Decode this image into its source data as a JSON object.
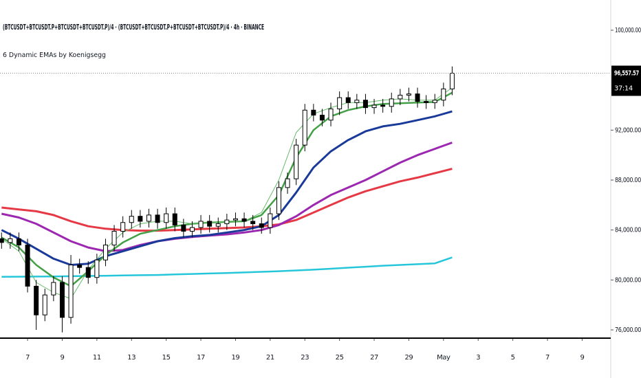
{
  "chart_data": {
    "type": "candlestick",
    "title": "(BTCUSDT+BTCUSDT.P+BTCUSDT+BTCUSDT.P)/4 · (BTCUSDT+BTCUSDT.P+BTCUSDT+BTCUSDT.P)/4 · 4h · BINANCE",
    "subtitle": "6 Dynamic EMAs by Koenigsegg",
    "xlim": [
      5.41,
      40.65
    ],
    "xticks": [
      7,
      9,
      11,
      13,
      15,
      17,
      19,
      21,
      23,
      25,
      27,
      29,
      {
        "value": 31,
        "label": "May"
      },
      {
        "value": 33,
        "label": "3"
      },
      {
        "value": 35,
        "label": "5"
      },
      {
        "value": 37,
        "label": "7"
      },
      {
        "value": 39,
        "label": "9"
      }
    ],
    "ylim": [
      75340,
      102420
    ],
    "yticks": [
      {
        "value": 100000,
        "label": "100,000.00"
      },
      {
        "value": 92000,
        "label": "92,000.00"
      },
      {
        "value": 88000,
        "label": "88,000.00"
      },
      {
        "value": 84000,
        "label": "84,000.00"
      },
      {
        "value": 80000,
        "label": "80,000.00"
      },
      {
        "value": 76000,
        "label": "76,000.00"
      }
    ],
    "up_color": "#ffffff",
    "down_color": "#000000",
    "x": [
      5.5,
      6,
      6.5,
      7,
      7.5,
      8,
      8.5,
      9,
      9.5,
      10,
      10.5,
      11,
      11.5,
      12,
      12.5,
      13,
      13.5,
      14,
      14.5,
      15,
      15.5,
      16,
      16.5,
      17,
      17.5,
      18,
      18.5,
      19,
      19.5,
      20,
      20.5,
      21,
      21.5,
      22,
      22.5,
      23,
      23.5,
      24,
      24.5,
      25,
      25.5,
      26,
      26.5,
      27,
      27.5,
      28,
      28.5,
      29,
      29.5,
      30,
      30.5,
      31,
      31.5
    ],
    "open": [
      83300,
      83000,
      83300,
      82800,
      79500,
      77200,
      78800,
      79800,
      77000,
      81200,
      81000,
      80200,
      81600,
      82800,
      83900,
      84600,
      85100,
      84700,
      85200,
      84600,
      85300,
      84400,
      83900,
      84200,
      84700,
      84300,
      84500,
      84800,
      84900,
      84700,
      84500,
      84200,
      85300,
      87400,
      88100,
      90800,
      93600,
      93200,
      92800,
      93700,
      94600,
      94200,
      94400,
      93800,
      94000,
      93900,
      94500,
      94800,
      94900,
      94300,
      94200,
      94400,
      95300
    ],
    "high": [
      83800,
      83800,
      83800,
      83300,
      80000,
      79300,
      80300,
      80300,
      82000,
      81700,
      81500,
      82100,
      83300,
      84400,
      85100,
      85600,
      85600,
      85700,
      85700,
      85800,
      85800,
      84900,
      84700,
      85200,
      85200,
      85000,
      85300,
      85400,
      85400,
      85200,
      85000,
      85800,
      87900,
      88600,
      91300,
      94100,
      94100,
      93700,
      94200,
      95100,
      95100,
      94900,
      94900,
      94500,
      94500,
      95000,
      95300,
      95400,
      95400,
      94800,
      94900,
      95800,
      97100
    ],
    "low": [
      82500,
      82500,
      82300,
      79000,
      76000,
      76700,
      78300,
      75800,
      76500,
      80500,
      79700,
      79700,
      81100,
      82300,
      83400,
      84100,
      84200,
      84200,
      84100,
      84100,
      83900,
      83400,
      83400,
      83700,
      83800,
      83800,
      84000,
      84300,
      84200,
      84000,
      83700,
      83700,
      84800,
      86900,
      87600,
      90300,
      92700,
      92300,
      92300,
      93200,
      93700,
      93700,
      93300,
      93300,
      93400,
      93400,
      94000,
      94300,
      93800,
      93700,
      93700,
      93900,
      94800
    ],
    "close": [
      83000,
      83300,
      82800,
      79500,
      77200,
      78800,
      79800,
      77000,
      81200,
      81000,
      80200,
      81600,
      82800,
      83900,
      84600,
      85100,
      84700,
      85200,
      84600,
      85300,
      84400,
      83900,
      84200,
      84700,
      84300,
      84500,
      84800,
      84900,
      84700,
      84500,
      84200,
      85300,
      87400,
      88100,
      90800,
      93600,
      93200,
      92800,
      93700,
      94600,
      94200,
      94400,
      93800,
      94000,
      93900,
      94500,
      94800,
      94900,
      94300,
      94200,
      94400,
      95300,
      96557.57
    ],
    "last_price": {
      "value": 96557.57,
      "label": "96,557.57"
    },
    "countdown": "37:14",
    "lines": [
      {
        "color": "#26c6da",
        "width": 2.5,
        "x": [
          5.5,
          6.5,
          7.5,
          8.5,
          9.5,
          10.5,
          11.5,
          12.5,
          13.5,
          14.5,
          15.5,
          16.5,
          17.5,
          18.5,
          19.5,
          20.5,
          21.5,
          22.5,
          23.5,
          24.5,
          25.5,
          26.5,
          27.5,
          28.5,
          29.5,
          30.5,
          31.5
        ],
        "values": [
          80250,
          80260,
          80270,
          80280,
          80300,
          80320,
          80340,
          80360,
          80380,
          80400,
          80440,
          80480,
          80520,
          80560,
          80600,
          80650,
          80700,
          80760,
          80820,
          80900,
          80980,
          81060,
          81140,
          81200,
          81260,
          81330,
          81800
        ]
      },
      {
        "color": "#e53946",
        "width": 3,
        "x": [
          5.5,
          6.5,
          7.5,
          8.5,
          9.5,
          10.5,
          11.5,
          12.5,
          13.5,
          14.5,
          15.5,
          16.5,
          17.5,
          18.5,
          19.5,
          20.5,
          21.5,
          22.5,
          23.5,
          24.5,
          25.5,
          26.5,
          27.5,
          28.5,
          29.5,
          30.5,
          31.5
        ],
        "values": [
          85800,
          85650,
          85500,
          85200,
          84700,
          84300,
          84100,
          84000,
          83950,
          83950,
          84000,
          84050,
          84100,
          84150,
          84200,
          84300,
          84450,
          84800,
          85400,
          86000,
          86600,
          87100,
          87500,
          87900,
          88200,
          88550,
          88900
        ]
      },
      {
        "color": "#9c27b0",
        "width": 3,
        "x": [
          5.5,
          6.5,
          7.5,
          8.5,
          9.5,
          10.5,
          11.5,
          12.5,
          13.5,
          14.5,
          15.5,
          16.5,
          17.5,
          18.5,
          19.5,
          20.5,
          21.5,
          22.5,
          23.5,
          24.5,
          25.5,
          26.5,
          27.5,
          28.5,
          29.5,
          30.5,
          31.5
        ],
        "values": [
          85300,
          85000,
          84500,
          83800,
          83100,
          82600,
          82300,
          82400,
          82800,
          83100,
          83300,
          83450,
          83550,
          83650,
          83800,
          84000,
          84400,
          85100,
          86000,
          86800,
          87400,
          88000,
          88700,
          89400,
          90000,
          90500,
          91000
        ]
      },
      {
        "color": "#1a3a9a",
        "width": 3,
        "x": [
          5.5,
          6.5,
          7.5,
          8.5,
          9.5,
          10.5,
          11.5,
          12.5,
          13.5,
          14.5,
          15.5,
          16.5,
          17.5,
          18.5,
          19.5,
          20.5,
          21.5,
          22.5,
          23.5,
          24.5,
          25.5,
          26.5,
          27.5,
          28.5,
          29.5,
          30.5,
          31.5
        ],
        "values": [
          84000,
          83300,
          82500,
          81700,
          81200,
          81300,
          81900,
          82300,
          82700,
          83100,
          83350,
          83500,
          83600,
          83800,
          84000,
          84300,
          85200,
          87000,
          89000,
          90300,
          91200,
          91900,
          92300,
          92500,
          92800,
          93100,
          93500
        ]
      },
      {
        "color": "#43a047",
        "width": 2.5,
        "x": [
          5.5,
          6.5,
          7.5,
          8.5,
          9.5,
          10.5,
          11.5,
          12.5,
          13.5,
          14.5,
          15.5,
          16.5,
          17.5,
          18.5,
          19.5,
          20.5,
          21.5,
          22.5,
          23.5,
          24.5,
          25.5,
          26.5,
          27.5,
          28.5,
          29.5,
          30.5,
          31.5
        ],
        "values": [
          83400,
          82600,
          81200,
          80200,
          79500,
          80700,
          82000,
          83000,
          83700,
          84000,
          84300,
          84500,
          84600,
          84650,
          84700,
          85200,
          86800,
          89800,
          92000,
          93100,
          93600,
          93900,
          94100,
          94150,
          94200,
          94250,
          95000
        ]
      },
      {
        "color": "#66bb6a",
        "width": 1,
        "x": [
          5.5,
          6.5,
          7.5,
          8.5,
          9.5,
          10.5,
          11.5,
          12.5,
          13.5,
          14.5,
          15.5,
          16.5,
          17.5,
          18.5,
          19.5,
          20.5,
          21.5,
          22.5,
          23.5,
          24.5,
          25.5,
          26.5,
          27.5,
          28.5,
          29.5,
          30.5,
          31.5
        ],
        "values": [
          83300,
          82300,
          79800,
          79000,
          78500,
          80800,
          82500,
          83800,
          84500,
          84700,
          84700,
          84500,
          84600,
          84700,
          84700,
          85400,
          88000,
          91800,
          93300,
          93800,
          94200,
          94200,
          94400,
          94500,
          94400,
          94400,
          95400
        ]
      }
    ]
  }
}
